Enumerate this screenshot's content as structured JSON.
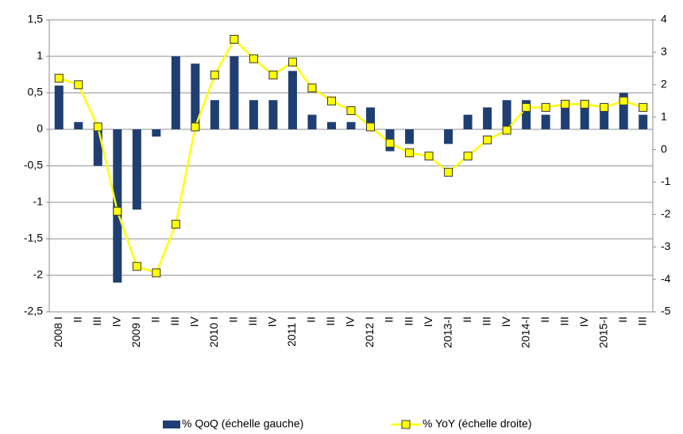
{
  "chart_data": {
    "type": "bar-line",
    "categories": [
      "2008 I",
      "II",
      "III",
      "IV",
      "2009 I",
      "II",
      "III",
      "IV",
      "2010 I",
      "II",
      "III",
      "IV",
      "2011 I",
      "II",
      "III",
      "IV",
      "2012 I",
      "II",
      "III",
      "IV",
      "2013-I",
      "II",
      "III",
      "IV",
      "2014-I",
      "II",
      "III",
      "IV",
      "2015-I",
      "II",
      "III"
    ],
    "series": [
      {
        "name": "% QoQ (échelle gauche)",
        "type": "bar",
        "axis": "y",
        "color": "#1f3f73",
        "values": [
          0.6,
          0.1,
          -0.5,
          -2.1,
          -1.1,
          -0.1,
          1.0,
          0.9,
          0.4,
          1.0,
          0.4,
          0.4,
          0.8,
          0.2,
          0.1,
          0.1,
          0.3,
          -0.3,
          -0.2,
          0,
          -0.2,
          0.2,
          0.3,
          0.4,
          0.4,
          0.2,
          0.4,
          0.4,
          0.3,
          0.5,
          0.2
        ]
      },
      {
        "name": "% YoY (échelle droite)",
        "type": "line",
        "axis": "y2",
        "color": "#ffff00",
        "values": [
          2.2,
          2.0,
          0.7,
          -1.9,
          -3.6,
          -3.8,
          -2.3,
          0.7,
          2.3,
          3.4,
          2.8,
          2.3,
          2.7,
          1.9,
          1.5,
          1.2,
          0.7,
          0.2,
          -0.1,
          -0.2,
          -0.7,
          -0.2,
          0.3,
          0.6,
          1.3,
          1.3,
          1.4,
          1.4,
          1.3,
          1.5,
          1.3
        ]
      }
    ],
    "ylim": [
      -2.5,
      1.5
    ],
    "yticks": [
      {
        "value": 1.5,
        "label": "1,5"
      },
      1,
      {
        "value": 0.5,
        "label": "0,5"
      },
      0,
      {
        "value": -0.5,
        "label": "-0,5"
      },
      -1,
      {
        "value": -1.5,
        "label": "-1,5"
      },
      -2,
      {
        "value": -2.5,
        "label": "-2,5"
      }
    ],
    "y2lim": [
      -5,
      4
    ],
    "y2ticks": [
      4,
      3,
      2,
      1,
      0,
      -1,
      -2,
      -3,
      -4,
      -5
    ],
    "grid": true,
    "legend": "bottom"
  }
}
